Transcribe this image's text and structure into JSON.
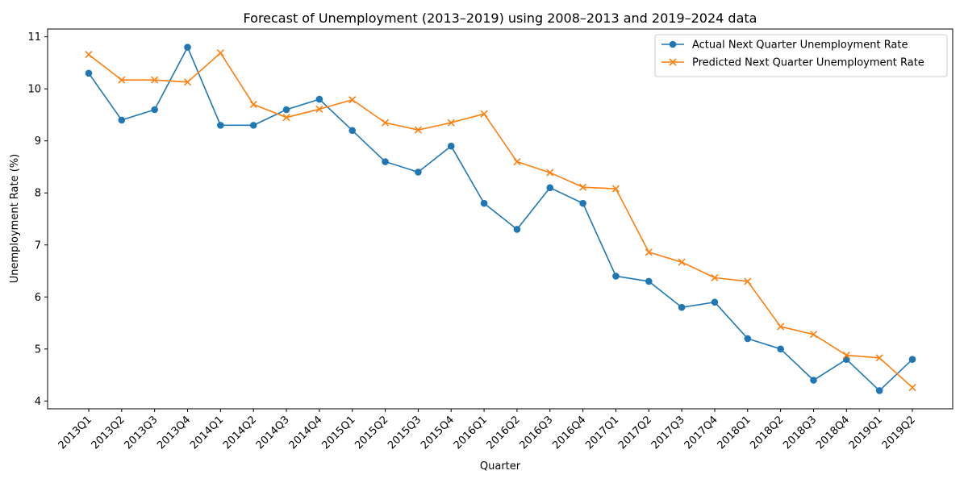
{
  "chart_data": {
    "type": "line",
    "title": "Forecast of Unemployment (2013–2019) using 2008–2013 and 2019–2024 data",
    "xlabel": "Quarter",
    "ylabel": "Unemployment Rate (%)",
    "ylim": [
      3.85,
      11.15
    ],
    "yticks": [
      4,
      5,
      6,
      7,
      8,
      9,
      10,
      11
    ],
    "grid": false,
    "legend_position": "top-right",
    "categories": [
      "2013Q1",
      "2013Q2",
      "2013Q3",
      "2013Q4",
      "2014Q1",
      "2014Q2",
      "2014Q3",
      "2014Q4",
      "2015Q1",
      "2015Q2",
      "2015Q3",
      "2015Q4",
      "2016Q1",
      "2016Q2",
      "2016Q3",
      "2016Q4",
      "2017Q1",
      "2017Q2",
      "2017Q3",
      "2017Q4",
      "2018Q1",
      "2018Q2",
      "2018Q3",
      "2018Q4",
      "2019Q1",
      "2019Q2"
    ],
    "series": [
      {
        "name": "Actual Next Quarter Unemployment Rate",
        "color": "#1f77b4",
        "marker": "circle",
        "values": [
          10.3,
          9.4,
          9.6,
          10.8,
          9.3,
          9.3,
          9.6,
          9.8,
          9.2,
          8.6,
          8.4,
          8.9,
          7.8,
          7.3,
          8.1,
          7.8,
          6.4,
          6.3,
          5.8,
          5.9,
          5.2,
          5.0,
          4.4,
          4.8,
          4.2,
          4.8
        ]
      },
      {
        "name": "Predicted Next Quarter Unemployment Rate",
        "color": "#ff7f0e",
        "marker": "x",
        "values": [
          10.66,
          10.17,
          10.17,
          10.13,
          10.69,
          9.7,
          9.45,
          9.61,
          9.79,
          9.35,
          9.21,
          9.35,
          9.52,
          8.6,
          8.39,
          8.11,
          8.08,
          6.86,
          6.67,
          6.37,
          6.3,
          5.43,
          5.28,
          4.88,
          4.83,
          4.26
        ]
      }
    ]
  }
}
